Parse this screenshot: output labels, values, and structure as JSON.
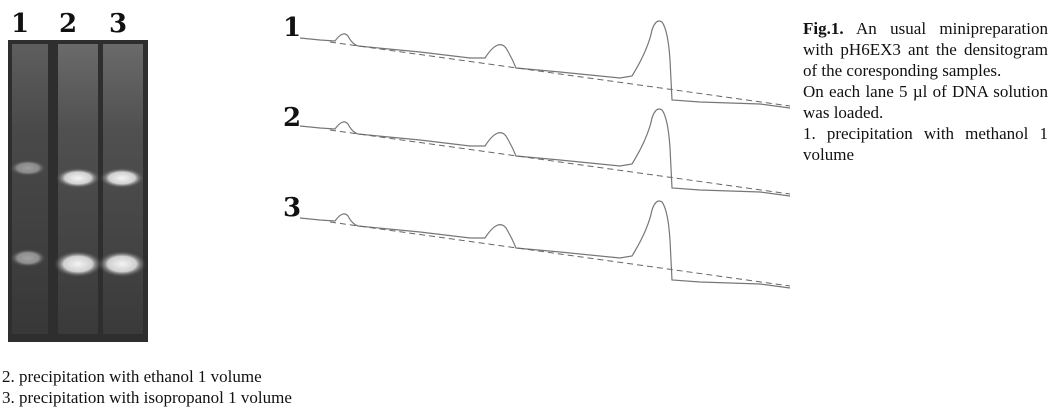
{
  "figure": {
    "gel_lane_labels": [
      "1",
      "2",
      "3"
    ],
    "trace_labels": [
      "1",
      "2",
      "3"
    ],
    "caption": {
      "label": "Fig.1.",
      "text": "An usual minipreparation with pH6EX3 ant the densitogram of the coresponding samples.",
      "note": "On each lane 5  µl of DNA solution was loaded.",
      "items": [
        "1. precipitation with methanol 1 volume",
        "2. precipitation with ethanol 1 volume",
        "3. precipitation with isopropanol 1 volume"
      ]
    }
  }
}
